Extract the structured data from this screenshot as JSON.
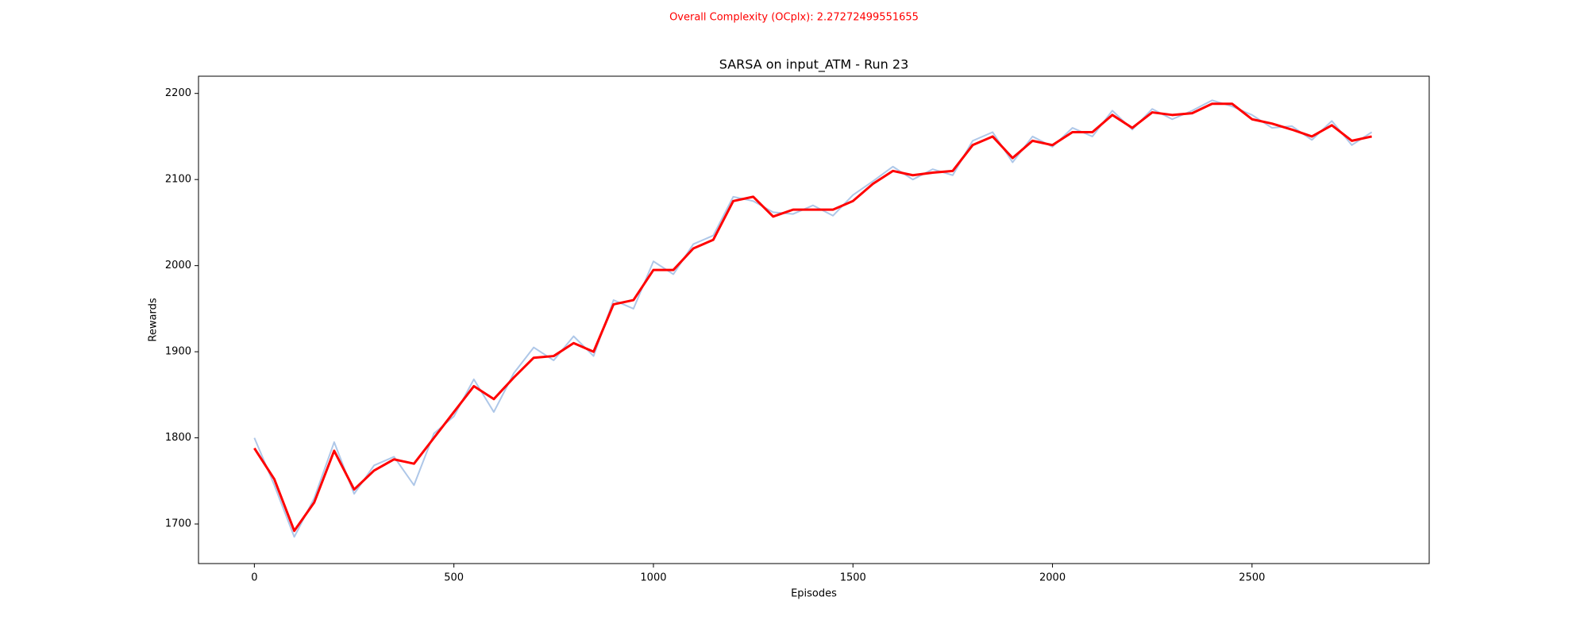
{
  "chart_data": {
    "type": "line",
    "annotation": "Overall Complexity (OCplx): 2.27272499551655",
    "title": "SARSA on input_ATM - Run 23",
    "xlabel": "Episodes",
    "ylabel": "Rewards",
    "x": [
      0,
      50,
      100,
      150,
      200,
      250,
      300,
      350,
      400,
      450,
      500,
      550,
      600,
      650,
      700,
      750,
      800,
      850,
      900,
      950,
      1000,
      1050,
      1100,
      1150,
      1200,
      1250,
      1300,
      1350,
      1400,
      1450,
      1500,
      1550,
      1600,
      1650,
      1700,
      1750,
      1800,
      1850,
      1900,
      1950,
      2000,
      2050,
      2100,
      2150,
      2200,
      2250,
      2300,
      2350,
      2400,
      2450,
      2500,
      2550,
      2600,
      2650,
      2700,
      2750,
      2800
    ],
    "series": [
      {
        "color": "#aec7e8",
        "values": [
          1800,
          1745,
          1685,
          1730,
          1795,
          1735,
          1768,
          1778,
          1745,
          1805,
          1825,
          1868,
          1830,
          1875,
          1905,
          1890,
          1918,
          1895,
          1960,
          1950,
          2005,
          1990,
          2025,
          2035,
          2080,
          2075,
          2062,
          2060,
          2070,
          2058,
          2082,
          2098,
          2115,
          2100,
          2112,
          2105,
          2145,
          2155,
          2120,
          2150,
          2138,
          2160,
          2150,
          2180,
          2158,
          2182,
          2170,
          2180,
          2192,
          2185,
          2175,
          2160,
          2162,
          2146,
          2168,
          2140,
          2155
        ]
      },
      {
        "color": "#ff0000",
        "values": [
          1788,
          1752,
          1692,
          1725,
          1785,
          1740,
          1762,
          1775,
          1770,
          1800,
          1830,
          1860,
          1845,
          1870,
          1893,
          1895,
          1910,
          1900,
          1955,
          1960,
          1995,
          1995,
          2020,
          2030,
          2075,
          2080,
          2057,
          2065,
          2065,
          2065,
          2075,
          2095,
          2110,
          2105,
          2108,
          2110,
          2140,
          2150,
          2125,
          2145,
          2140,
          2155,
          2155,
          2175,
          2160,
          2178,
          2175,
          2177,
          2188,
          2188,
          2170,
          2165,
          2158,
          2150,
          2163,
          2145,
          2150
        ]
      }
    ],
    "xlim": [
      -140,
      2944
    ],
    "ylim": [
      1654,
      2220
    ],
    "xticks": [
      0,
      500,
      1000,
      1500,
      2000,
      2500
    ],
    "yticks": [
      1700,
      1800,
      1900,
      2000,
      2100,
      2200
    ],
    "grid": false
  }
}
